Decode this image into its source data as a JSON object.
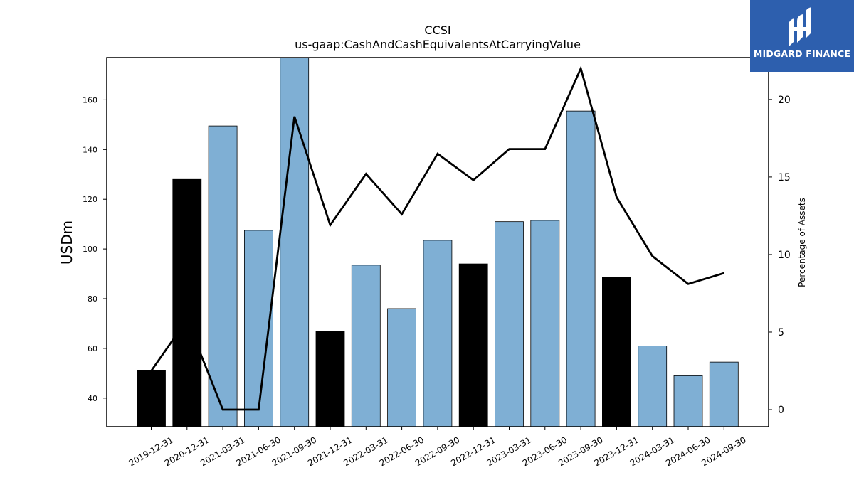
{
  "chart_data": {
    "type": "bar",
    "title": "CCSI",
    "subtitle": "us-gaap:CashAndCashEquivalentsAtCarryingValue",
    "ylabel": "USDm",
    "y2label": "Percentage of Assets",
    "categories": [
      "2019-12-31",
      "2020-12-31",
      "2021-03-31",
      "2021-06-30",
      "2021-09-30",
      "2021-12-31",
      "2022-03-31",
      "2022-06-30",
      "2022-09-30",
      "2022-12-31",
      "2023-03-31",
      "2023-06-30",
      "2023-09-30",
      "2023-12-31",
      "2024-03-31",
      "2024-06-30",
      "2024-09-30"
    ],
    "series": [
      {
        "type": "bar",
        "values": [
          51,
          128,
          149.5,
          107.5,
          177,
          67,
          93.5,
          76,
          103.5,
          94,
          111,
          111.5,
          155.5,
          88.5,
          61,
          49,
          54.5
        ],
        "colors": [
          "#000000",
          "#000000",
          "#7fafd4",
          "#7fafd4",
          "#7fafd4",
          "#000000",
          "#7fafd4",
          "#7fafd4",
          "#7fafd4",
          "#000000",
          "#7fafd4",
          "#7fafd4",
          "#7fafd4",
          "#000000",
          "#7fafd4",
          "#7fafd4",
          "#7fafd4"
        ]
      },
      {
        "type": "line",
        "axis": "right",
        "values": [
          2.5,
          5.8,
          0,
          0,
          18.9,
          11.9,
          15.2,
          12.6,
          16.5,
          14.8,
          16.8,
          16.8,
          22.0,
          13.7,
          9.9,
          8.1,
          8.8
        ],
        "color": "#000000"
      }
    ],
    "ylim": [
      28.5,
      177
    ],
    "yticks": [
      40,
      60,
      80,
      100,
      120,
      140,
      160
    ],
    "y2lim": [
      -1.1,
      22.7
    ],
    "y2ticks": [
      0,
      5,
      10,
      15,
      20
    ],
    "grid": false,
    "legend": "none"
  },
  "logo": {
    "text": "MIDGARD FINANCE",
    "color": "#2d5fae"
  }
}
